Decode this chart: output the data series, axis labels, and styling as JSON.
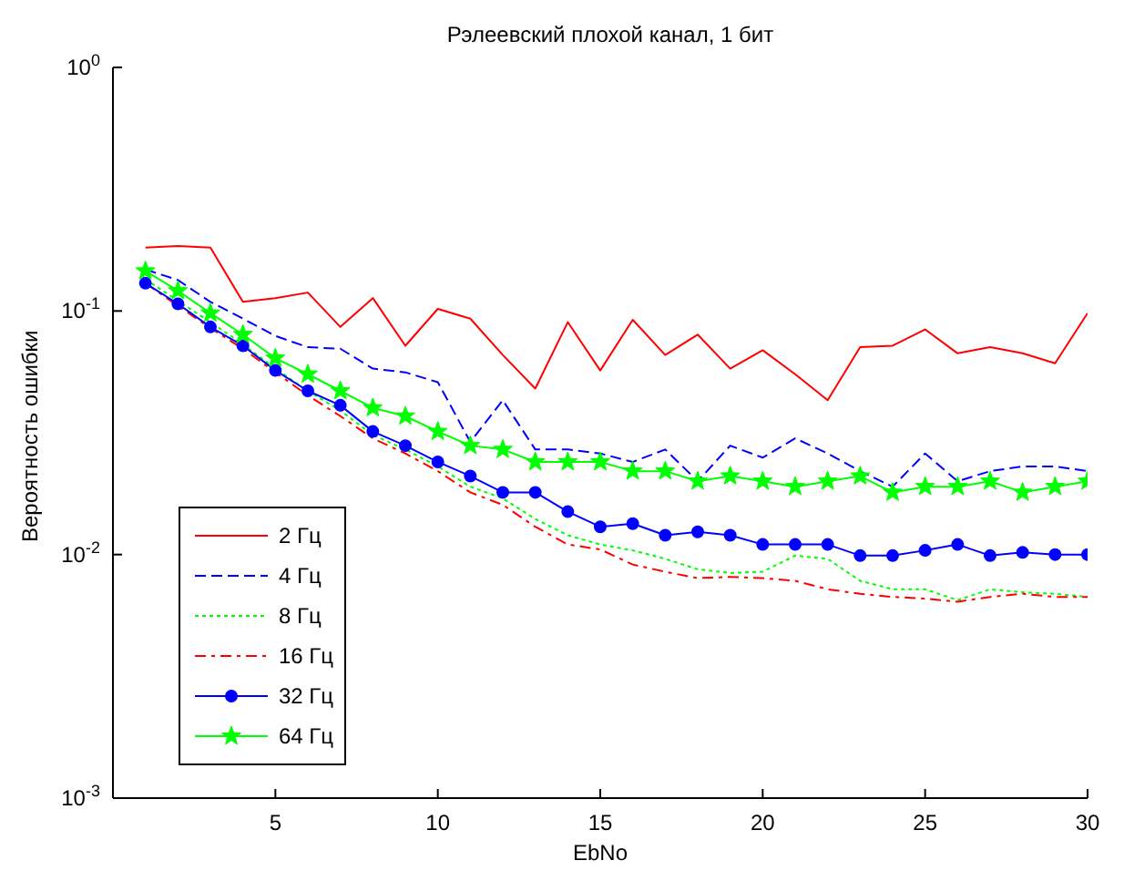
{
  "chart_data": {
    "type": "line",
    "title": "Рэлеевский плохой канал, 1 бит",
    "xlabel": "EbNo",
    "ylabel": "Вероятность ошибки",
    "x": [
      1,
      2,
      3,
      4,
      5,
      6,
      7,
      8,
      9,
      10,
      11,
      12,
      13,
      14,
      15,
      16,
      17,
      18,
      19,
      20,
      21,
      22,
      23,
      24,
      25,
      26,
      27,
      28,
      29,
      30
    ],
    "series": [
      {
        "name": "2 Гц",
        "color": "#ff0000",
        "line_style": "solid",
        "marker": "none",
        "values": [
          0.182,
          0.185,
          0.182,
          0.109,
          0.113,
          0.119,
          0.086,
          0.113,
          0.072,
          0.102,
          0.093,
          0.066,
          0.048,
          0.09,
          0.057,
          0.092,
          0.066,
          0.08,
          0.058,
          0.069,
          0.055,
          0.043,
          0.071,
          0.072,
          0.084,
          0.067,
          0.071,
          0.067,
          0.061,
          0.098
        ]
      },
      {
        "name": "4 Гц",
        "color": "#0000ff",
        "line_style": "dashed",
        "marker": "none",
        "values": [
          0.148,
          0.134,
          0.109,
          0.093,
          0.079,
          0.071,
          0.07,
          0.058,
          0.056,
          0.051,
          0.029,
          0.043,
          0.027,
          0.027,
          0.026,
          0.024,
          0.027,
          0.02,
          0.028,
          0.025,
          0.03,
          0.026,
          0.022,
          0.019,
          0.026,
          0.02,
          0.022,
          0.023,
          0.023,
          0.022
        ]
      },
      {
        "name": "8 Гц",
        "color": "#00ff00",
        "line_style": "dotted",
        "marker": "none",
        "values": [
          0.135,
          0.11,
          0.09,
          0.073,
          0.058,
          0.047,
          0.039,
          0.031,
          0.027,
          0.023,
          0.019,
          0.017,
          0.014,
          0.012,
          0.011,
          0.0104,
          0.0096,
          0.0087,
          0.0084,
          0.0085,
          0.0099,
          0.0096,
          0.0078,
          0.0072,
          0.0072,
          0.0065,
          0.0072,
          0.007,
          0.0069,
          0.0067
        ]
      },
      {
        "name": "16 Гц",
        "color": "#ff0000",
        "line_style": "dashdot",
        "marker": "none",
        "values": [
          0.13,
          0.105,
          0.085,
          0.07,
          0.056,
          0.045,
          0.037,
          0.03,
          0.026,
          0.022,
          0.018,
          0.016,
          0.013,
          0.011,
          0.0105,
          0.0091,
          0.0085,
          0.008,
          0.0081,
          0.008,
          0.0078,
          0.0072,
          0.0069,
          0.0067,
          0.0066,
          0.0064,
          0.0067,
          0.0069,
          0.0067,
          0.0067
        ]
      },
      {
        "name": "32 Гц",
        "color": "#0000ff",
        "line_style": "solid",
        "marker": "circle",
        "values": [
          0.13,
          0.107,
          0.086,
          0.072,
          0.057,
          0.047,
          0.041,
          0.032,
          0.028,
          0.024,
          0.021,
          0.018,
          0.018,
          0.015,
          0.013,
          0.0134,
          0.012,
          0.0124,
          0.012,
          0.011,
          0.011,
          0.011,
          0.0099,
          0.0099,
          0.0104,
          0.011,
          0.0099,
          0.0102,
          0.01,
          0.01
        ]
      },
      {
        "name": "64 Гц",
        "color": "#00ff00",
        "line_style": "solid",
        "marker": "star",
        "values": [
          0.146,
          0.121,
          0.098,
          0.08,
          0.064,
          0.055,
          0.047,
          0.04,
          0.037,
          0.032,
          0.028,
          0.027,
          0.024,
          0.024,
          0.024,
          0.022,
          0.022,
          0.02,
          0.021,
          0.02,
          0.019,
          0.02,
          0.021,
          0.018,
          0.019,
          0.019,
          0.02,
          0.018,
          0.019,
          0.02
        ]
      }
    ],
    "log": true,
    "xlim": [
      0,
      30
    ],
    "xticks": [
      5,
      10,
      15,
      20,
      25,
      30
    ],
    "ylim": [
      0.001,
      1
    ],
    "yticks": [
      {
        "value": 0.001,
        "label": "10$^{-3}$"
      },
      {
        "value": 0.01,
        "label": "10$^{-2}$"
      },
      {
        "value": 0.1,
        "label": "10$^{-1}$"
      },
      {
        "value": 1,
        "label": "10$^{0}$"
      }
    ],
    "grid": false,
    "legend": "bottom left"
  }
}
